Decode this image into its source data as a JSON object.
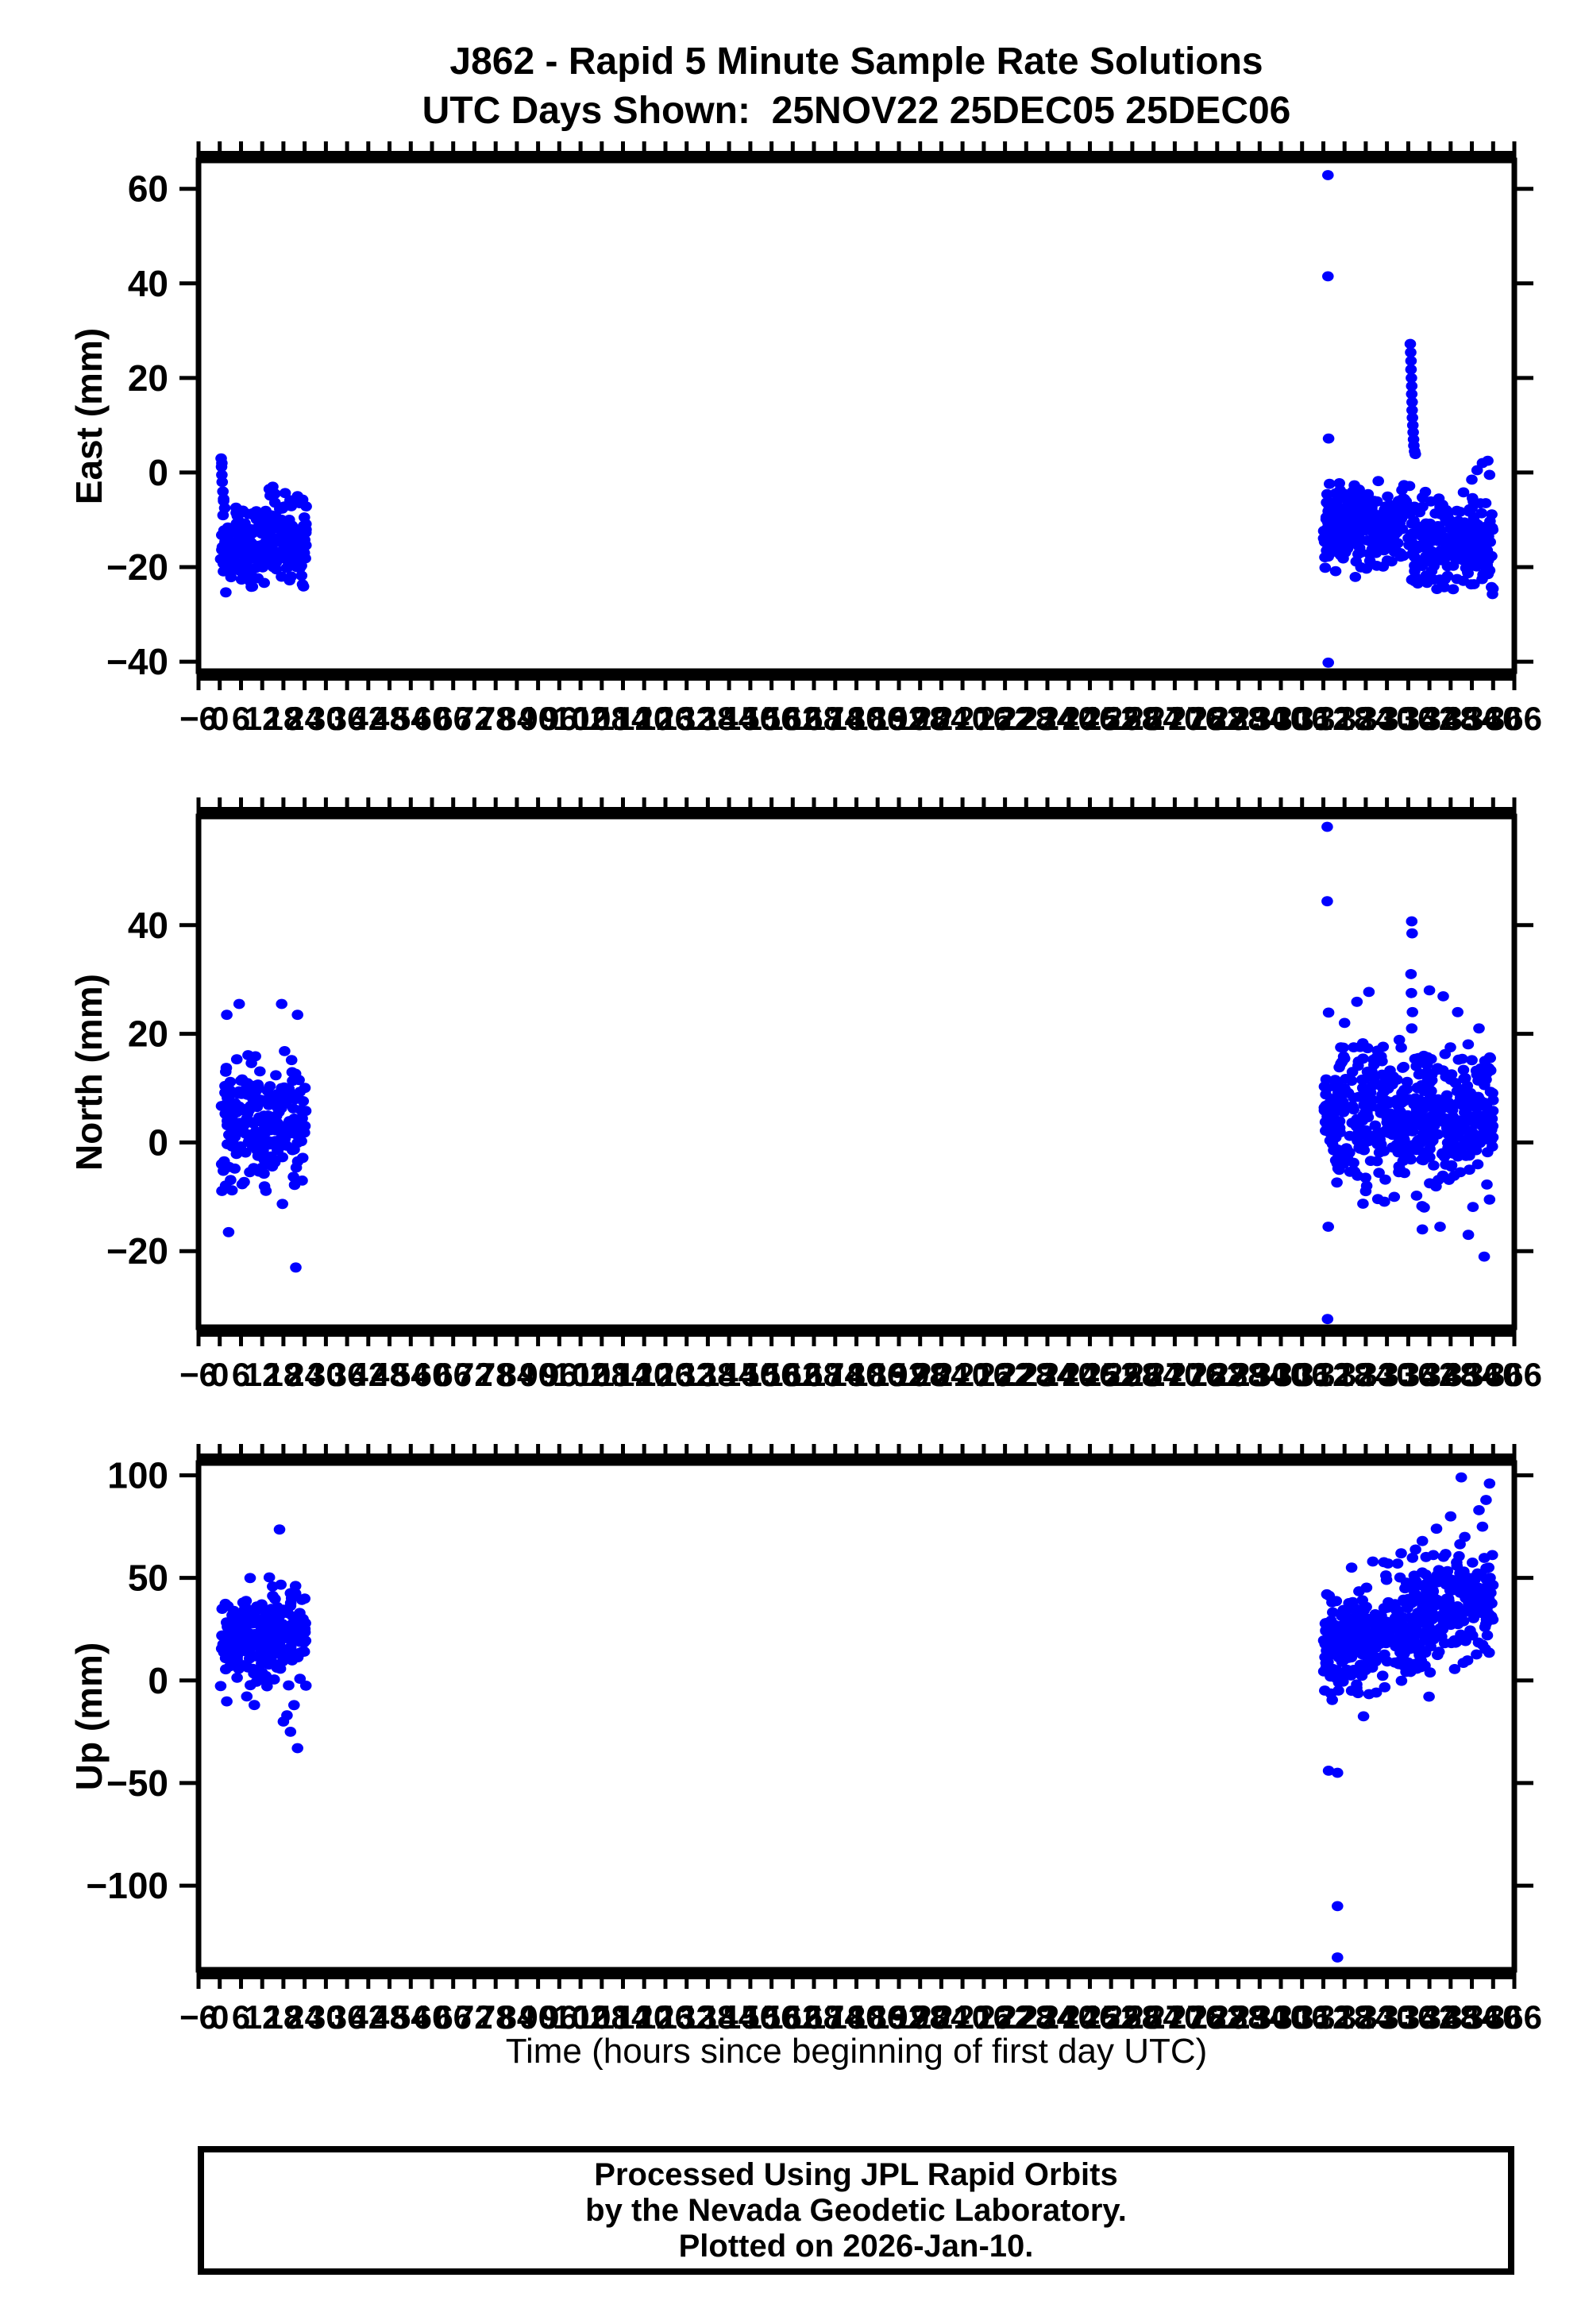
{
  "title": {
    "line1": "J862 - Rapid 5 Minute Sample Rate Solutions",
    "line2": "UTC Days Shown:  25NOV22 25DEC05 25DEC06"
  },
  "xaxis": {
    "title": "Time (hours since beginning of first day UTC)",
    "lim": [
      -6,
      366
    ],
    "major_step": 6,
    "minor_step": 1,
    "tick_labels": [
      -6,
      0,
      6,
      12,
      18,
      24,
      30,
      36,
      42,
      48,
      54,
      60,
      66,
      72,
      78,
      84,
      90,
      96,
      102,
      108,
      114,
      120,
      126,
      132,
      138,
      144,
      150,
      156,
      162,
      168,
      174,
      180,
      186,
      192,
      198,
      204,
      210,
      216,
      222,
      228,
      234,
      240,
      246,
      252,
      258,
      264,
      270,
      276,
      282,
      288,
      294,
      300,
      306,
      312,
      318,
      324,
      330,
      336,
      342,
      348,
      354,
      360,
      366
    ]
  },
  "footer": {
    "line1": "Processed Using JPL Rapid Orbits",
    "line2": "by the Nevada Geodetic Laboratory.",
    "line3": "Plotted on 2026-Jan-10."
  },
  "style": {
    "point_color": "#0000ff",
    "frame_color": "#000000",
    "text_color": "#000000"
  },
  "chart_data": {
    "type": "scatter",
    "seed": 1862,
    "x_units": "hours since beginning of first day UTC",
    "days_shown": [
      "25NOV22",
      "25DEC05",
      "25DEC06"
    ],
    "panels": [
      {
        "id": "east",
        "ylabel": "East (mm)",
        "ylim": [
          -42,
          66
        ],
        "yticks": [
          60,
          40,
          20,
          0,
          -20,
          -40
        ],
        "clusters": [
          {
            "x0": 0.2,
            "x1": 24.5,
            "n": 250,
            "mean0": -15,
            "mean1": -15,
            "sd": 4.5,
            "ymin": -27,
            "ymax": 2
          },
          {
            "x0": 312,
            "x1": 336,
            "n": 260,
            "mean0": -11,
            "mean1": -11,
            "sd": 4.2,
            "ymin": -25,
            "ymax": -1
          },
          {
            "x0": 336,
            "x1": 360,
            "n": 260,
            "mean0": -15,
            "mean1": -15,
            "sd": 4.8,
            "ymin": -26,
            "ymax": 0
          }
        ],
        "points": [
          [
            0.4,
            3
          ],
          [
            0.5,
            1.2
          ],
          [
            0.6,
            -0.5
          ],
          [
            0.7,
            -2
          ],
          [
            0.9,
            -4
          ],
          [
            1.1,
            -6
          ],
          [
            1.4,
            -7.5
          ],
          [
            0.6,
            2
          ],
          [
            14,
            -3.5
          ],
          [
            15,
            -3
          ],
          [
            15.6,
            -4.5
          ],
          [
            22,
            -5
          ],
          [
            22.6,
            -6.5
          ],
          [
            336.6,
            27.2
          ],
          [
            336.7,
            25.4
          ],
          [
            336.8,
            23.6
          ],
          [
            336.8,
            21.8
          ],
          [
            336.9,
            20
          ],
          [
            337.0,
            18.3
          ],
          [
            337.0,
            16.6
          ],
          [
            337.1,
            14.9
          ],
          [
            337.1,
            13.2
          ],
          [
            337.2,
            11.6
          ],
          [
            337.3,
            10
          ],
          [
            337.4,
            8.5
          ],
          [
            337.5,
            7
          ],
          [
            337.6,
            5.7
          ],
          [
            337.8,
            4.5
          ],
          [
            338.0,
            3.9
          ],
          [
            313.3,
            62.9
          ],
          [
            313.3,
            41.5
          ],
          [
            313.5,
            7.2
          ],
          [
            313.4,
            -40.2
          ],
          [
            355.5,
            0.5
          ],
          [
            357,
            2
          ],
          [
            358.5,
            2.5
          ],
          [
            359,
            -0.5
          ],
          [
            354,
            -1.5
          ]
        ]
      },
      {
        "id": "north",
        "ylabel": "North (mm)",
        "ylim": [
          -34,
          60
        ],
        "yticks": [
          40,
          20,
          0,
          -20
        ],
        "clusters": [
          {
            "x0": 0.2,
            "x1": 24.5,
            "n": 250,
            "mean0": 3,
            "mean1": 3,
            "sd": 5.5,
            "ymin": -14,
            "ymax": 17
          },
          {
            "x0": 312,
            "x1": 360,
            "n": 480,
            "mean0": 4,
            "mean1": 4,
            "sd": 6,
            "ymin": -13,
            "ymax": 18
          },
          {
            "x0": 312,
            "x1": 360,
            "n": 50,
            "mean0": 13,
            "mean1": 13,
            "sd": 4,
            "ymin": 5,
            "ymax": 20
          }
        ],
        "points": [
          [
            2,
            23.5
          ],
          [
            5.5,
            25.5
          ],
          [
            17.5,
            25.5
          ],
          [
            22,
            23.5
          ],
          [
            2.5,
            -16.5
          ],
          [
            21.5,
            -23
          ],
          [
            313.1,
            58.1
          ],
          [
            313.1,
            44.4
          ],
          [
            313.2,
            -32.5
          ],
          [
            337.0,
            40.7
          ],
          [
            337.1,
            38.5
          ],
          [
            336.8,
            31
          ],
          [
            336.9,
            27.5
          ],
          [
            337.2,
            24
          ],
          [
            337.0,
            21
          ],
          [
            324.9,
            27.7
          ],
          [
            321.5,
            25.9
          ],
          [
            345.9,
            26.9
          ],
          [
            313.5,
            23.9
          ],
          [
            318,
            22
          ],
          [
            350,
            24
          ],
          [
            342,
            28
          ],
          [
            356,
            21
          ],
          [
            340,
            -16
          ],
          [
            345,
            -15.5
          ],
          [
            353,
            -17
          ],
          [
            357.5,
            -21
          ],
          [
            313.4,
            -15.5
          ],
          [
            359,
            -10.5
          ]
        ]
      },
      {
        "id": "up",
        "ylabel": "Up (mm)",
        "ylim": [
          -141,
          106
        ],
        "yticks": [
          100,
          50,
          0,
          -50,
          -100
        ],
        "clusters": [
          {
            "x0": 0.2,
            "x1": 24.5,
            "n": 250,
            "mean0": 22,
            "mean1": 22,
            "sd": 12,
            "ymin": -12,
            "ymax": 54
          },
          {
            "x0": 312,
            "x1": 360,
            "n": 500,
            "mean0": 16,
            "mean1": 40,
            "sd": 13,
            "ymin": -30,
            "ymax": 72
          }
        ],
        "points": [
          [
            16.9,
            73.6
          ],
          [
            18,
            -20
          ],
          [
            20,
            -25
          ],
          [
            22,
            -33
          ],
          [
            19,
            -17
          ],
          [
            21,
            -12
          ],
          [
            316,
            -45
          ],
          [
            316,
            -110
          ],
          [
            316,
            -135
          ],
          [
            313.5,
            -44
          ],
          [
            351,
            99
          ],
          [
            359,
            96
          ],
          [
            358,
            88
          ],
          [
            356,
            83
          ],
          [
            348,
            80
          ],
          [
            344,
            74
          ],
          [
            352,
            70
          ],
          [
            357,
            75
          ],
          [
            340,
            68
          ],
          [
            334,
            62
          ],
          [
            313,
            42
          ],
          [
            320,
            55
          ],
          [
            326,
            58
          ],
          [
            333,
            57
          ]
        ]
      }
    ]
  }
}
